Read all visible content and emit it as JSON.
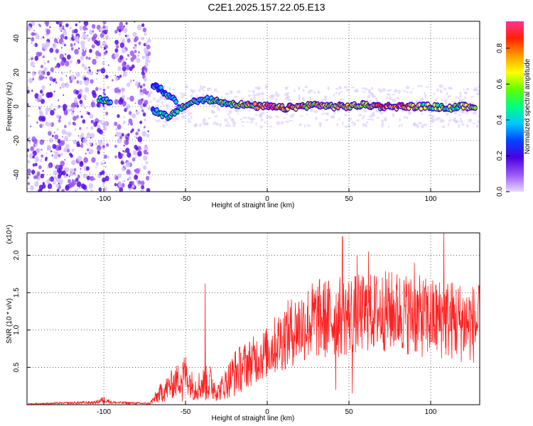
{
  "title": "C2E1.2025.157.22.05.E13",
  "chart_data": [
    {
      "type": "heatmap",
      "xlabel": "Height of straight line (km)",
      "ylabel": "Frequency (Hz)",
      "xlim": [
        -147,
        130
      ],
      "ylim": [
        -50,
        50
      ],
      "xticks": [
        -100,
        -50,
        0,
        50,
        100
      ],
      "yticks": [
        -40,
        -20,
        0,
        20,
        40
      ],
      "grid": true,
      "colorbar": {
        "label": "Normalized spectral amplitude",
        "range": [
          0,
          0.95
        ],
        "ticks": [
          0.0,
          0.2,
          0.4,
          0.6,
          0.8
        ],
        "colors": [
          "#e8d8ff",
          "#9b59f5",
          "#4b00e0",
          "#0044ff",
          "#00c8ff",
          "#00ff80",
          "#60ff00",
          "#ffff00",
          "#ff9900",
          "#ff2200",
          "#ff3399"
        ]
      },
      "features": {
        "noise_band": [
          -147,
          -72
        ],
        "gap_in_noise": [
          -98,
          -93
        ],
        "signal_trace": [
          {
            "x": -103,
            "y": 4,
            "amp": 0.5
          },
          {
            "x": -95,
            "y": 3,
            "amp": 0.5
          },
          {
            "x": -70,
            "y": 12,
            "amp": 0.3
          },
          {
            "x": -65,
            "y": 10,
            "amp": 0.35
          },
          {
            "x": -60,
            "y": 6,
            "amp": 0.4
          },
          {
            "x": -55,
            "y": 3,
            "amp": 0.45
          },
          {
            "x": -70,
            "y": -2,
            "amp": 0.4
          },
          {
            "x": -65,
            "y": -4,
            "amp": 0.45
          },
          {
            "x": -60,
            "y": -7,
            "amp": 0.5
          },
          {
            "x": -55,
            "y": -2,
            "amp": 0.45
          },
          {
            "x": -45,
            "y": 3,
            "amp": 0.5
          },
          {
            "x": -35,
            "y": 4,
            "amp": 0.5
          },
          {
            "x": -25,
            "y": 2,
            "amp": 0.55
          },
          {
            "x": -15,
            "y": 1,
            "amp": 0.6
          },
          {
            "x": -5,
            "y": 0,
            "amp": 0.7
          },
          {
            "x": 0,
            "y": 0,
            "amp": 0.85
          },
          {
            "x": 10,
            "y": -1,
            "amp": 0.75
          },
          {
            "x": 20,
            "y": 0,
            "amp": 0.7
          },
          {
            "x": 30,
            "y": 1,
            "amp": 0.65
          },
          {
            "x": 40,
            "y": 0,
            "amp": 0.6
          },
          {
            "x": 50,
            "y": 0,
            "amp": 0.65
          },
          {
            "x": 60,
            "y": 1,
            "amp": 0.6
          },
          {
            "x": 70,
            "y": 0,
            "amp": 0.75
          },
          {
            "x": 80,
            "y": 0,
            "amp": 0.85
          },
          {
            "x": 90,
            "y": 0,
            "amp": 0.65
          },
          {
            "x": 100,
            "y": 0,
            "amp": 0.6
          },
          {
            "x": 110,
            "y": -1,
            "amp": 0.55
          },
          {
            "x": 120,
            "y": 0,
            "amp": 0.6
          },
          {
            "x": 128,
            "y": 0,
            "amp": 0.55
          }
        ]
      }
    },
    {
      "type": "line",
      "xlabel": "Height of straight line (km)",
      "ylabel": "SNR (10 * v/v)",
      "y_multiplier": "(x10⁴)",
      "xlim": [
        -147,
        130
      ],
      "ylim": [
        0,
        2.3
      ],
      "xticks": [
        -100,
        -50,
        0,
        50,
        100
      ],
      "yticks": [
        0.5,
        1.0,
        1.5,
        2.0
      ],
      "grid": true,
      "color": "#ff2020",
      "envelope": [
        {
          "x": -147,
          "lo": 0.0,
          "hi": 0.02
        },
        {
          "x": -105,
          "lo": 0.01,
          "hi": 0.05
        },
        {
          "x": -100,
          "lo": 0.02,
          "hi": 0.12
        },
        {
          "x": -95,
          "lo": 0.01,
          "hi": 0.05
        },
        {
          "x": -72,
          "lo": 0.0,
          "hi": 0.03
        },
        {
          "x": -65,
          "lo": 0.02,
          "hi": 0.3
        },
        {
          "x": -55,
          "lo": 0.1,
          "hi": 0.55
        },
        {
          "x": -50,
          "lo": 0.15,
          "hi": 0.7
        },
        {
          "x": -45,
          "lo": 0.05,
          "hi": 0.4
        },
        {
          "x": -40,
          "lo": 0.05,
          "hi": 0.5
        },
        {
          "x": -35,
          "lo": 0.03,
          "hi": 0.55
        },
        {
          "x": -30,
          "lo": 0.05,
          "hi": 0.3
        },
        {
          "x": -20,
          "lo": 0.1,
          "hi": 0.75
        },
        {
          "x": -10,
          "lo": 0.25,
          "hi": 0.9
        },
        {
          "x": 0,
          "lo": 0.35,
          "hi": 1.05
        },
        {
          "x": 10,
          "lo": 0.45,
          "hi": 1.35
        },
        {
          "x": 20,
          "lo": 0.55,
          "hi": 1.55
        },
        {
          "x": 30,
          "lo": 0.6,
          "hi": 1.7
        },
        {
          "x": 40,
          "lo": 0.6,
          "hi": 1.7
        },
        {
          "x": 50,
          "lo": 0.65,
          "hi": 1.75
        },
        {
          "x": 60,
          "lo": 0.7,
          "hi": 1.75
        },
        {
          "x": 70,
          "lo": 0.7,
          "hi": 1.8
        },
        {
          "x": 80,
          "lo": 0.7,
          "hi": 1.8
        },
        {
          "x": 90,
          "lo": 0.65,
          "hi": 1.75
        },
        {
          "x": 100,
          "lo": 0.6,
          "hi": 1.7
        },
        {
          "x": 110,
          "lo": 0.6,
          "hi": 1.7
        },
        {
          "x": 120,
          "lo": 0.55,
          "hi": 1.65
        },
        {
          "x": 130,
          "lo": 0.55,
          "hi": 1.6
        }
      ],
      "spikes": [
        {
          "x": -38,
          "y": 1.62
        },
        {
          "x": 46,
          "y": 2.25
        },
        {
          "x": 108,
          "y": 2.3
        },
        {
          "x": 55,
          "y": 2.0
        },
        {
          "x": 62,
          "y": 2.05
        },
        {
          "x": 90,
          "y": 1.9
        },
        {
          "x": 42,
          "y": 0.2
        },
        {
          "x": 52,
          "y": 0.15
        },
        {
          "x": -52,
          "y": 0.04
        }
      ]
    }
  ]
}
